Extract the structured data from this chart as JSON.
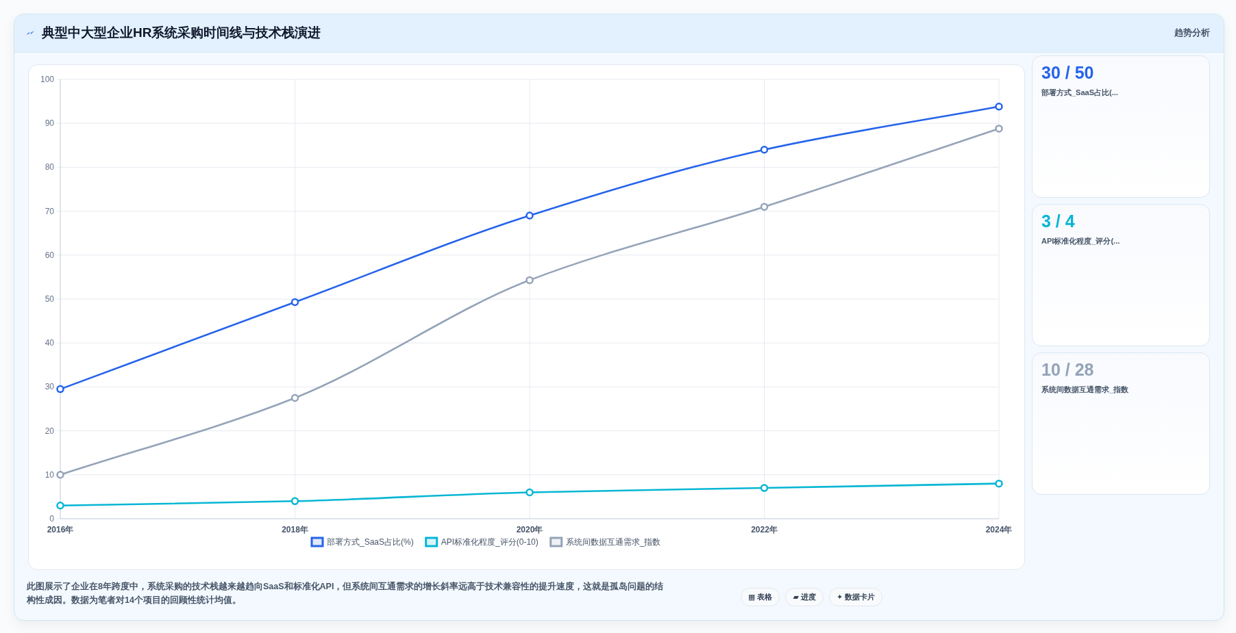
{
  "chart_data": [
    {
      "type": "line",
      "title": "典型中大型企业HR系统采购时间线与技术栈演进",
      "categories": [
        "2016年",
        "2018年",
        "2020年",
        "2022年",
        "2024年"
      ],
      "series": [
        {
          "name": "部署方式_SaaS占比(%)",
          "color": "#2563eb",
          "values": [
            29.5,
            49.3,
            69,
            84,
            93.8
          ]
        },
        {
          "name": "API标准化程度_评分(0-10)",
          "color": "#06b6d4",
          "values": [
            3,
            4,
            6,
            7,
            8
          ]
        },
        {
          "name": "系统间数据互通需求_指数",
          "color": "#94a3b8",
          "values": [
            10,
            27.5,
            54.3,
            71,
            88.8
          ]
        }
      ],
      "ylim": [
        0,
        100
      ],
      "yticks": [
        0,
        10,
        20,
        30,
        40,
        50,
        60,
        70,
        80,
        90,
        100
      ],
      "grid": true,
      "legend": "bottom",
      "marker": "circle",
      "line_style": "solid",
      "annotations": [
        "趋势分析",
        "此图展示了企业在8年跨度中，系统采购的技术栈越来越趋向SaaS和标准化API，但系统间互通需求的增长斜率远高于技术兼容性的提升速度，这就是孤岛问题的结构性成因。数据为笔者对14个项目的回顾性统计均值。",
        "▦ 表格",
        "▰ 进度",
        "✦ 数据卡片"
      ]
    },
    {
      "type": "other",
      "title": "30 / 50",
      "subtitle": "部署方式_SaaS占比(..."
    },
    {
      "type": "other",
      "title": "3 / 4",
      "subtitle": "API标准化程度_评分(..."
    },
    {
      "type": "other",
      "title": "10 / 28",
      "subtitle": "系统间数据互通需求_指数"
    }
  ]
}
